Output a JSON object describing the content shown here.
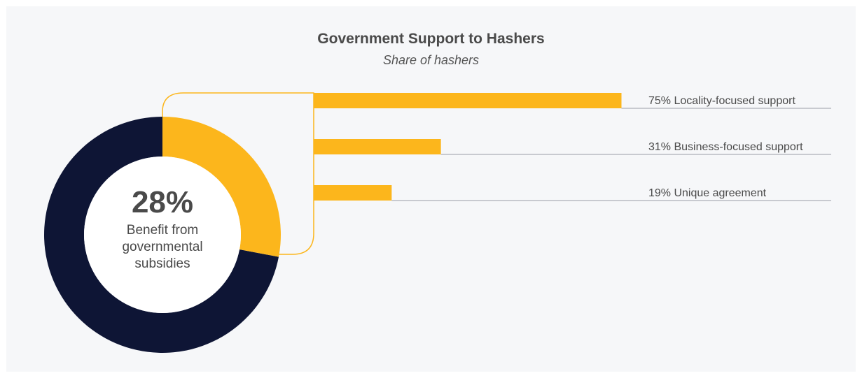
{
  "chart_data": {
    "type": "donut+bar",
    "title": "Government Support to Hashers",
    "subtitle": "Share of hashers",
    "donut": {
      "highlight_value": 28,
      "center_label": "28%",
      "center_text": "Benefit from governmental subsidies",
      "colors": {
        "highlight": "#fcb61c",
        "rest": "#0e1535"
      }
    },
    "bars": [
      {
        "label": "75% Locality-focused support",
        "value": 75
      },
      {
        "label": "31% Business-focused support",
        "value": 31
      },
      {
        "label": "19% Unique agreement",
        "value": 19
      }
    ],
    "bar_color": "#fcb61c",
    "bar_max": 100
  }
}
